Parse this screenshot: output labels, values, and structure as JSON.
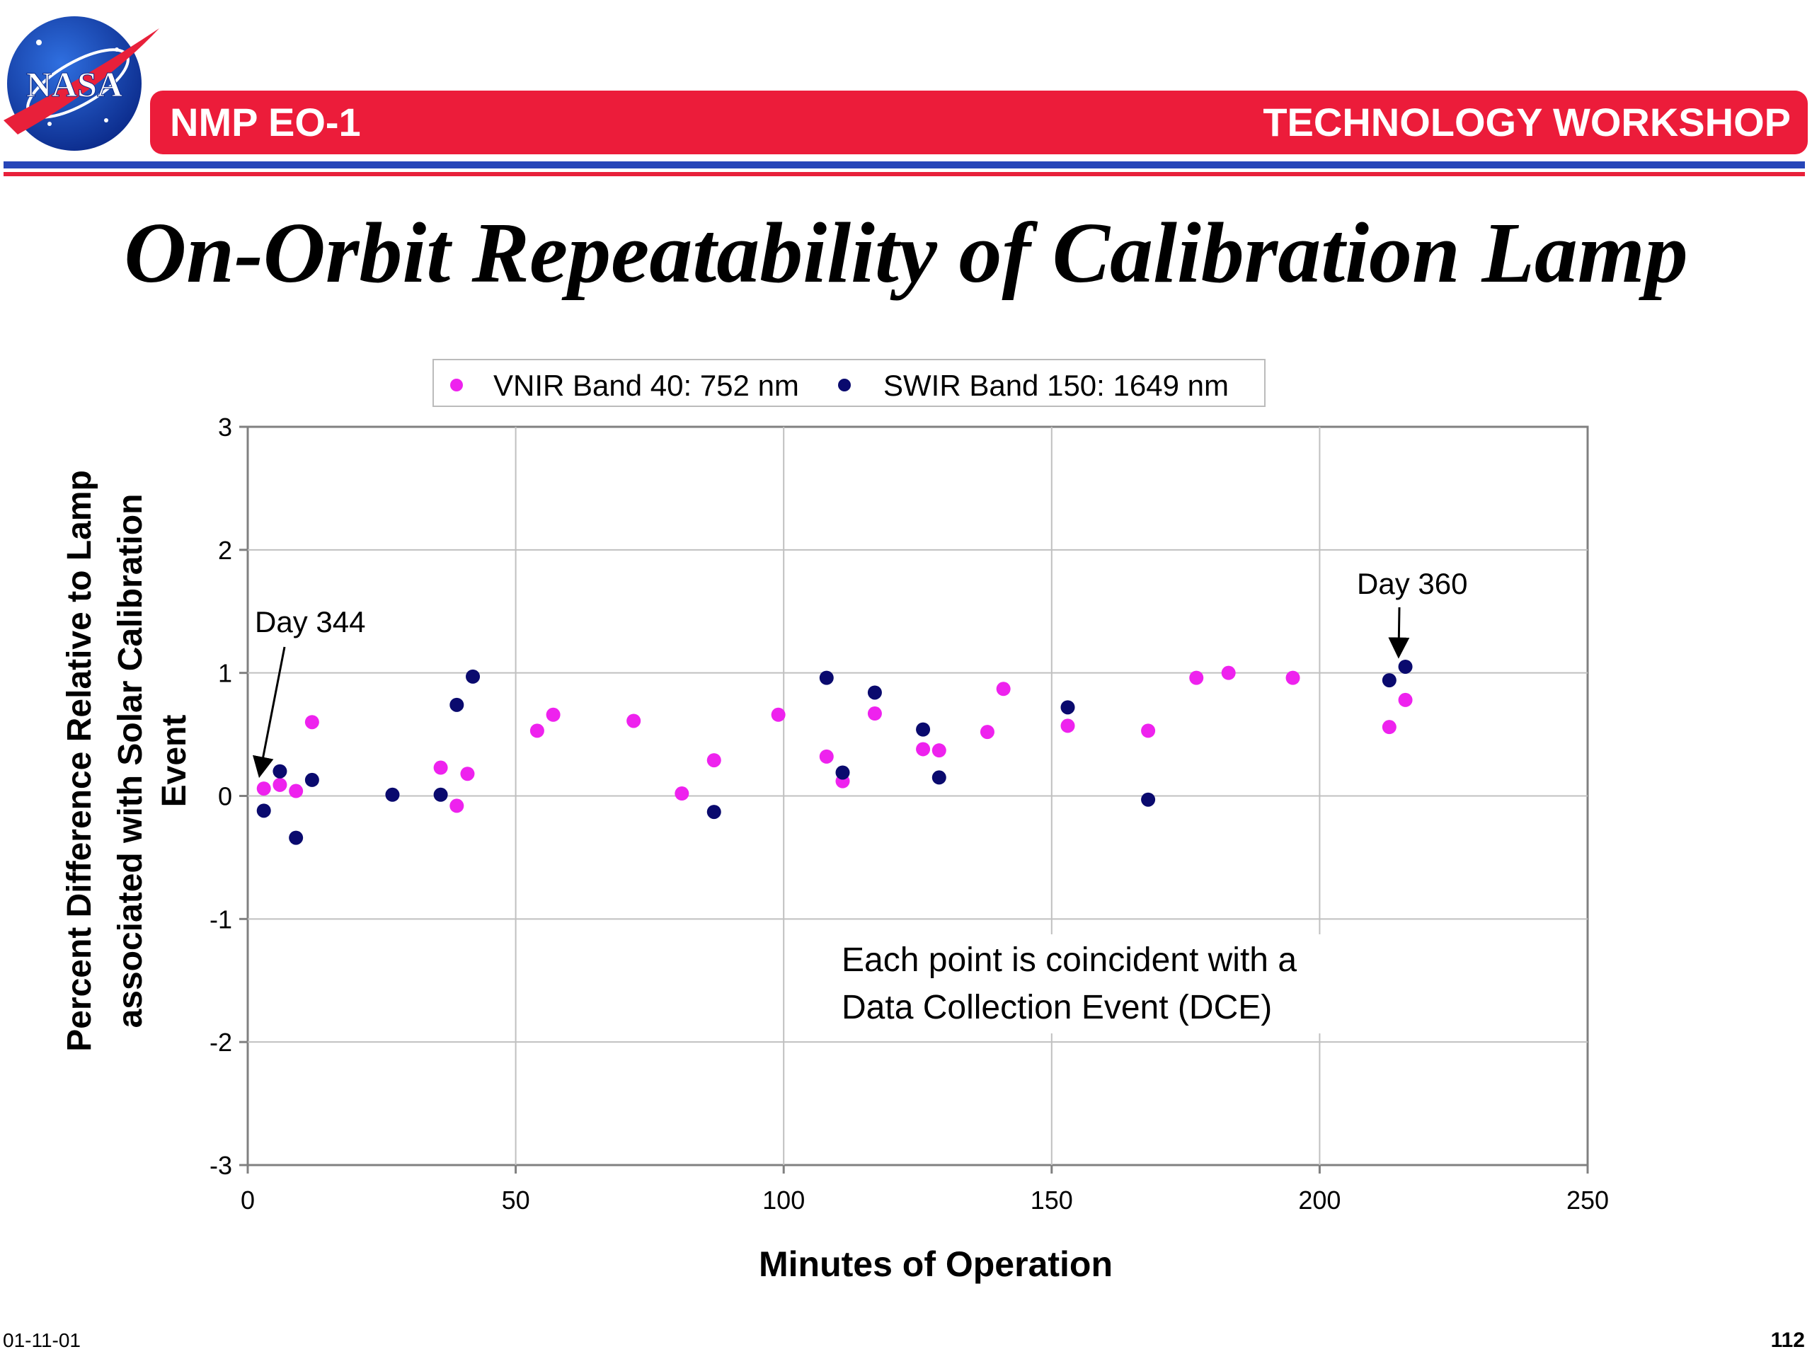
{
  "header": {
    "left": "NMP EO-1",
    "right": "TECHNOLOGY WORKSHOP",
    "logo_text": "NASA",
    "bar_color": "#ec1c3a",
    "rule_red": "#e8203a",
    "rule_blue": "#2746b8"
  },
  "title": "On-Orbit Repeatability of Calibration Lamp",
  "footer": {
    "date": "01-11-01",
    "page": "112"
  },
  "chart_data": {
    "type": "scatter",
    "title": "",
    "xlabel": "Minutes of Operation",
    "ylabel_lines": [
      "Percent Difference Relative to Lamp",
      "associated with Solar Calibration",
      "Event"
    ],
    "xlim": [
      0,
      250
    ],
    "ylim": [
      -3,
      3
    ],
    "x_ticks": [
      "0",
      "50",
      "100",
      "150",
      "200",
      "250"
    ],
    "y_ticks": [
      "3",
      "2",
      "1",
      "0",
      "-1",
      "-2",
      "-3"
    ],
    "grid": true,
    "legend_position": "top-center",
    "series": [
      {
        "name": "VNIR Band 40: 752 nm",
        "color": "#ee22ee",
        "points": [
          [
            3,
            0.06
          ],
          [
            6,
            0.09
          ],
          [
            9,
            0.04
          ],
          [
            12,
            0.6
          ],
          [
            36,
            0.23
          ],
          [
            39,
            -0.08
          ],
          [
            41,
            0.18
          ],
          [
            54,
            0.53
          ],
          [
            57,
            0.66
          ],
          [
            72,
            0.61
          ],
          [
            81,
            0.02
          ],
          [
            87,
            0.29
          ],
          [
            99,
            0.66
          ],
          [
            108,
            0.32
          ],
          [
            111,
            0.12
          ],
          [
            117,
            0.67
          ],
          [
            126,
            0.38
          ],
          [
            129,
            0.37
          ],
          [
            138,
            0.52
          ],
          [
            141,
            0.87
          ],
          [
            153,
            0.57
          ],
          [
            168,
            0.53
          ],
          [
            177,
            0.96
          ],
          [
            183,
            1.0
          ],
          [
            195,
            0.96
          ],
          [
            213,
            0.56
          ],
          [
            216,
            0.78
          ]
        ]
      },
      {
        "name": "SWIR Band 150: 1649 nm",
        "color": "#0a0a6e",
        "points": [
          [
            3,
            -0.12
          ],
          [
            6,
            0.2
          ],
          [
            9,
            -0.34
          ],
          [
            12,
            0.13
          ],
          [
            27,
            0.01
          ],
          [
            36,
            0.01
          ],
          [
            39,
            0.74
          ],
          [
            42,
            0.97
          ],
          [
            87,
            -0.13
          ],
          [
            108,
            0.96
          ],
          [
            111,
            0.19
          ],
          [
            117,
            0.84
          ],
          [
            126,
            0.54
          ],
          [
            129,
            0.15
          ],
          [
            153,
            0.72
          ],
          [
            168,
            -0.03
          ],
          [
            213,
            0.94
          ],
          [
            216,
            1.05
          ]
        ]
      }
    ],
    "annotations": [
      {
        "text": "Day 344",
        "target": [
          2,
          0.18
        ]
      },
      {
        "text": "Day 360",
        "target": [
          215,
          1.15
        ]
      }
    ],
    "note_lines": [
      "Each point is coincident with a",
      "Data Collection Event (DCE)"
    ]
  }
}
